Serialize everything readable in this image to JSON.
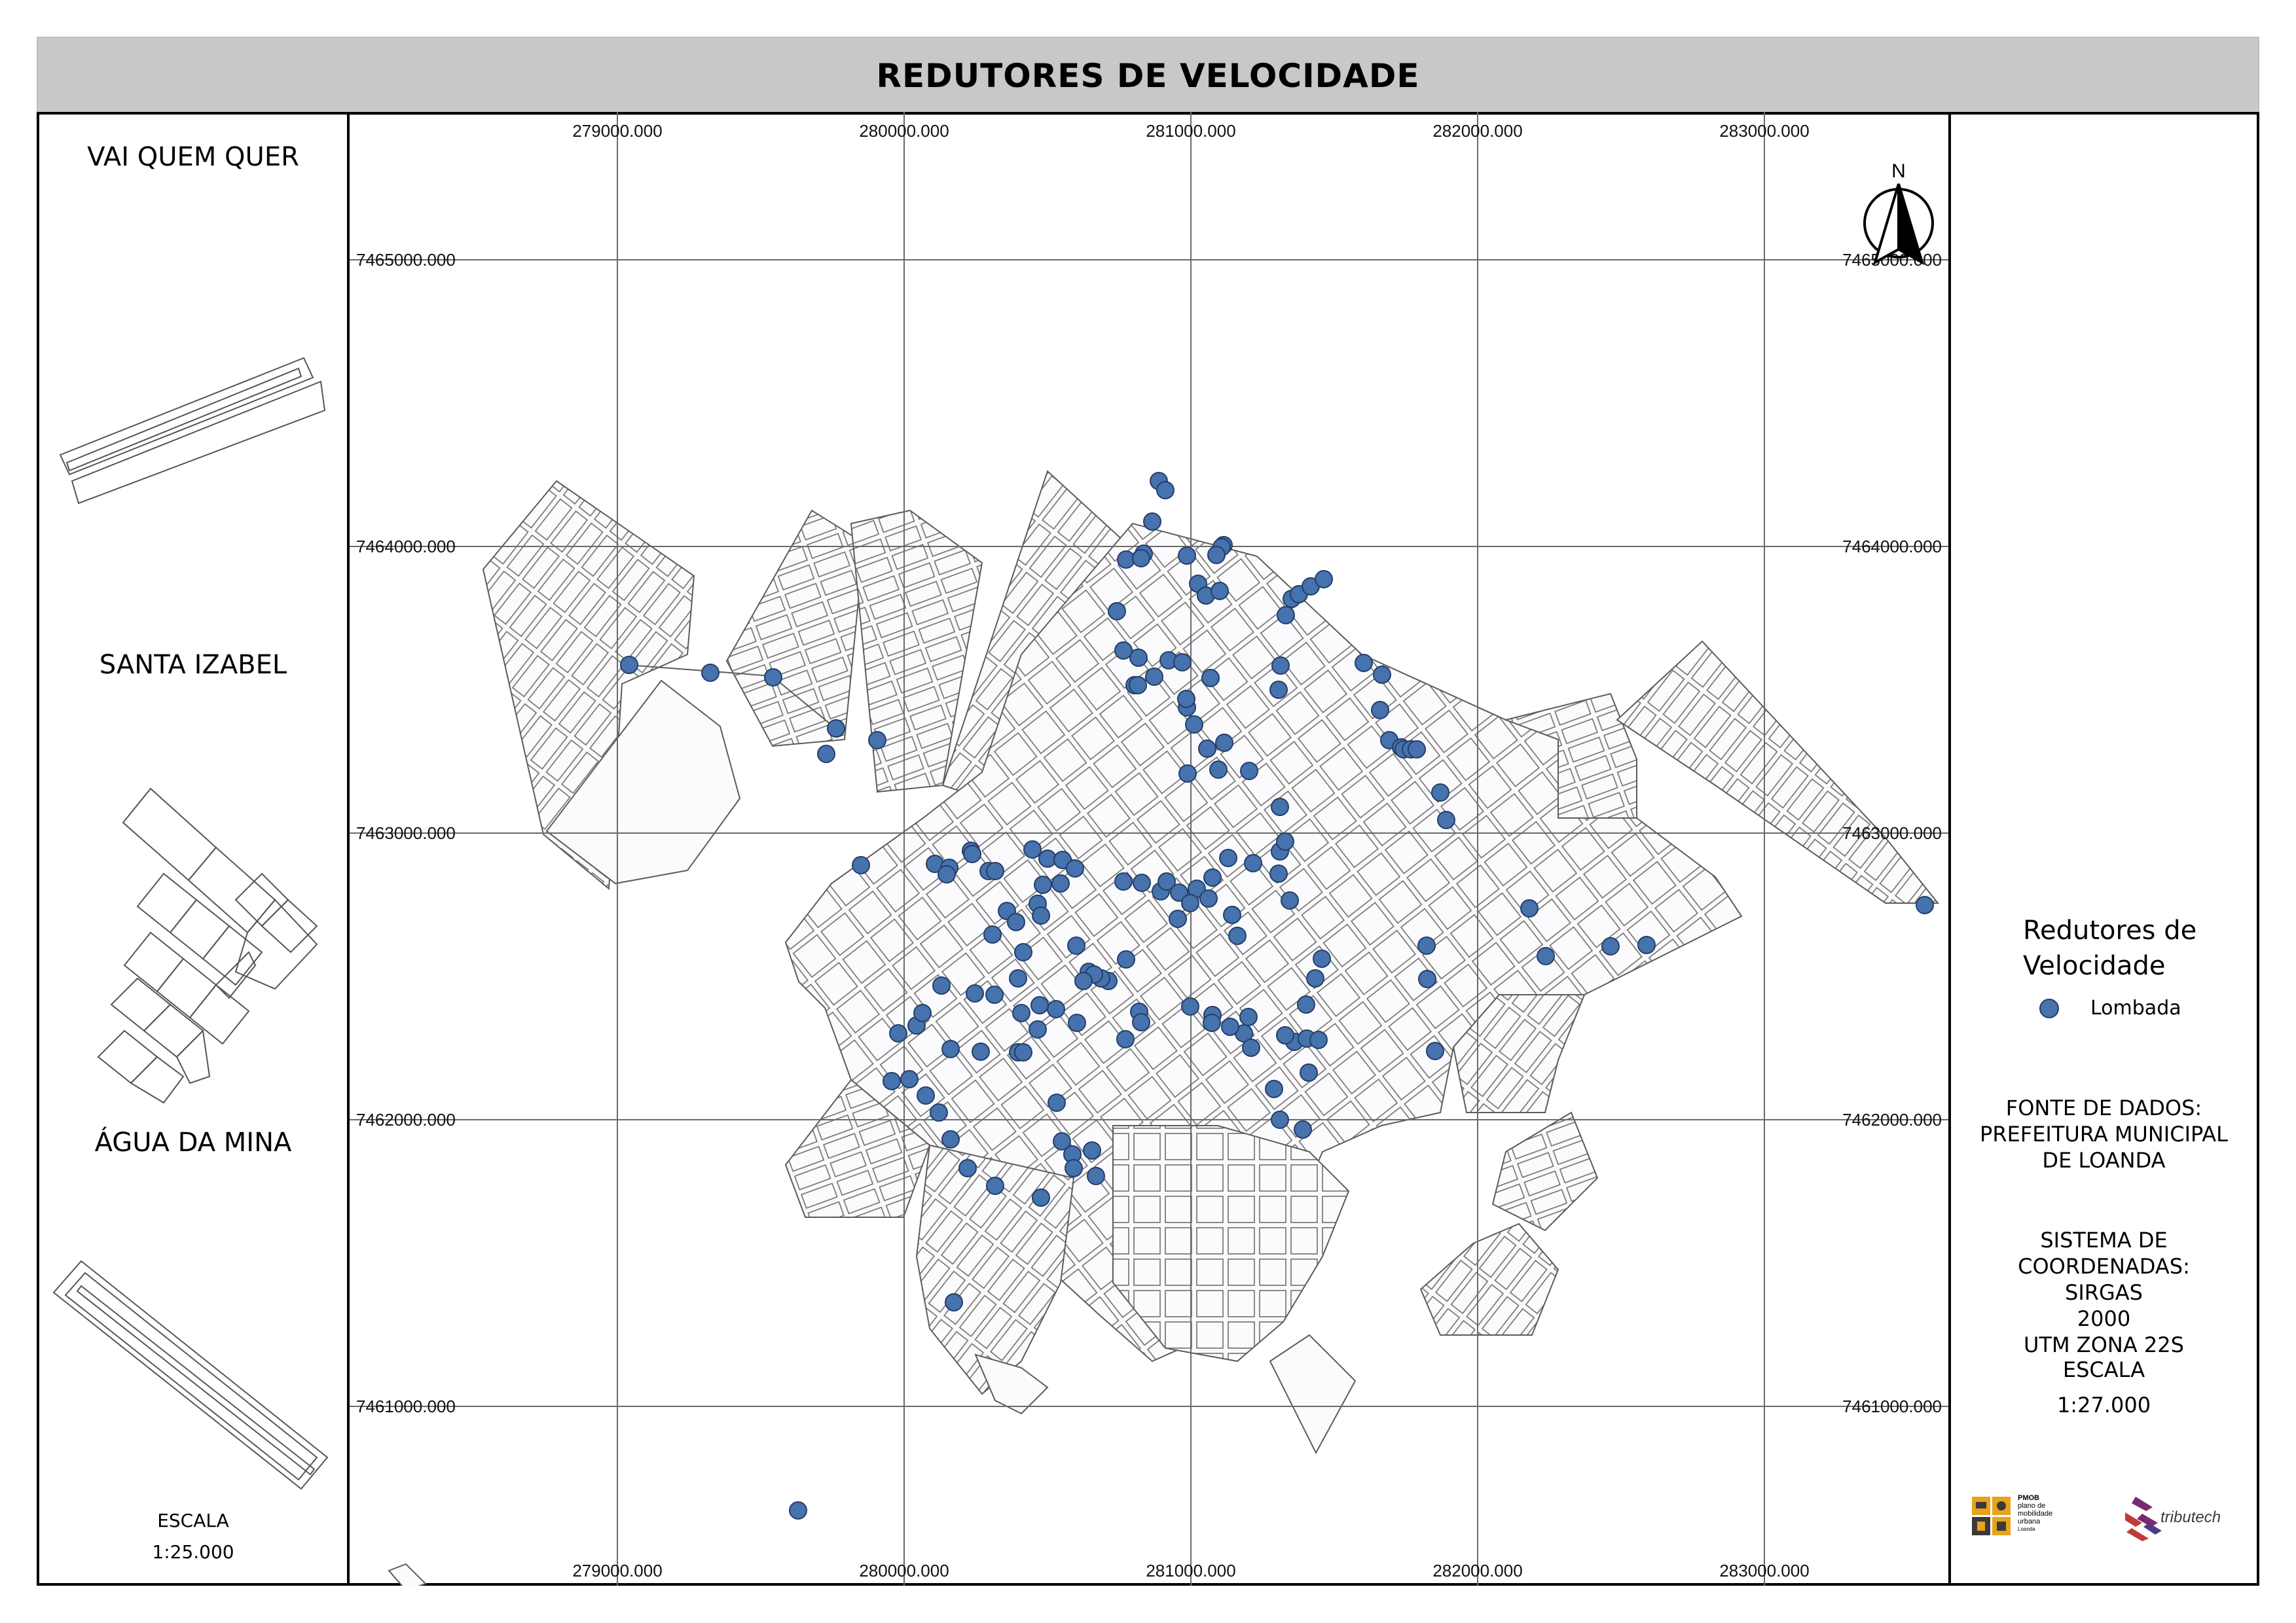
{
  "title": "REDUTORES DE VELOCIDADE",
  "left_panel": {
    "districts": [
      "VAI QUEM QUER",
      "SANTA IZABEL",
      "ÁGUA DA MINA"
    ],
    "scale_label": "ESCALA",
    "scale_value": "1:25.000"
  },
  "map": {
    "x_ticks": [
      "279000.000",
      "280000.000",
      "281000.000",
      "282000.000",
      "283000.000"
    ],
    "y_ticks": [
      "7465000.000",
      "7464000.000",
      "7463000.000",
      "7462000.000",
      "7461000.000"
    ],
    "north_label": "N",
    "point_color": "#4672ad",
    "line_color": "#808080"
  },
  "legend": {
    "title_line1": "Redutores de",
    "title_line2": "Velocidade",
    "item_label": "Lombada"
  },
  "info": {
    "source_line1": "FONTE DE DADOS:",
    "source_line2": "PREFEITURA MUNICIPAL",
    "source_line3": "DE LOANDA",
    "crs_line1": "SISTEMA DE COORDENADAS:",
    "crs_line2": "SIRGAS",
    "crs_line3": "2000",
    "crs_line4": "UTM ZONA 22S",
    "scale_label": "ESCALA",
    "scale_value": "1:27.000"
  },
  "logos": {
    "pmob_line1": "PMOB",
    "pmob_line2": "plano de",
    "pmob_line3": "mobilidade",
    "pmob_line4": "urbana",
    "pmob_line5": "Loanda",
    "tributech": "tributech"
  }
}
